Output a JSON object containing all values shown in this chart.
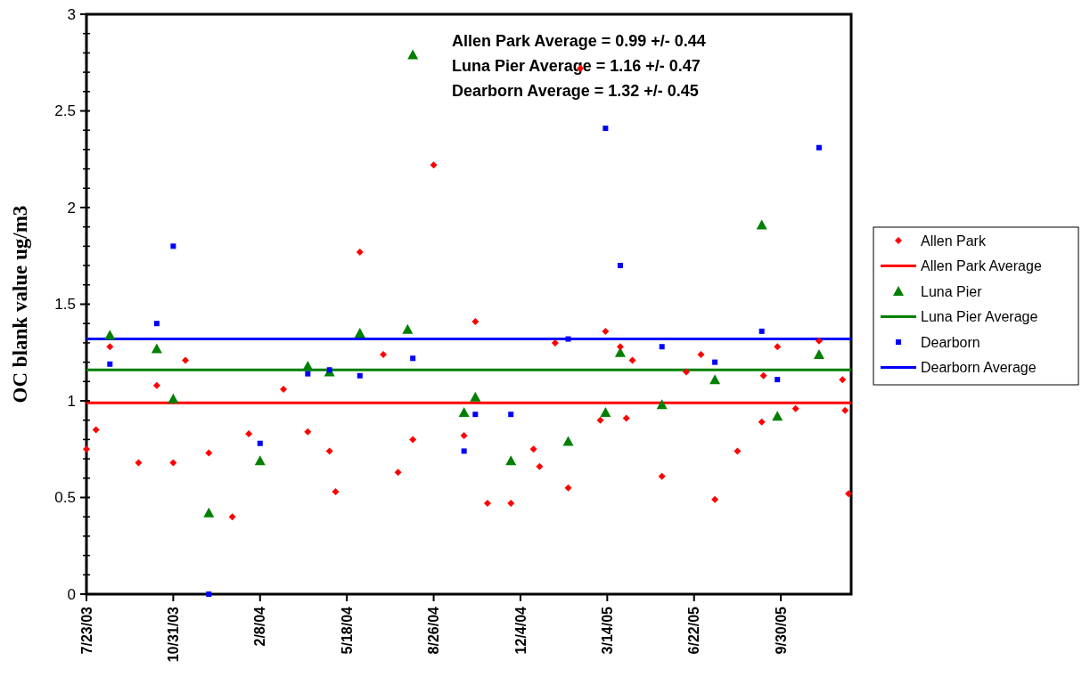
{
  "chart_data": {
    "type": "scatter",
    "ylabel": "OC blank value ug/m3",
    "annotations": [
      "Allen Park Average = 0.99 +/- 0.44",
      "Luna Pier Average = 1.16 +/- 0.47",
      "Dearborn Average = 1.32 +/- 0.45"
    ],
    "xlim": [
      "2003-07-23",
      "2005-12-20"
    ],
    "xticks": [
      {
        "value": "2003-07-23",
        "label": "7/23/03"
      },
      {
        "value": "2003-10-31",
        "label": "10/31/03"
      },
      {
        "value": "2004-02-08",
        "label": "2/8/04"
      },
      {
        "value": "2004-05-18",
        "label": "5/18/04"
      },
      {
        "value": "2004-08-26",
        "label": "8/26/04"
      },
      {
        "value": "2004-12-04",
        "label": "12/4/04"
      },
      {
        "value": "2005-03-14",
        "label": "3/14/05"
      },
      {
        "value": "2005-06-22",
        "label": "6/22/05"
      },
      {
        "value": "2005-09-30",
        "label": "9/30/05"
      }
    ],
    "ylim": [
      0,
      3
    ],
    "yticks": [
      0,
      {
        "value": 0.1,
        "label": null
      },
      {
        "value": 0.2,
        "label": null
      },
      {
        "value": 0.3,
        "label": null
      },
      {
        "value": 0.4,
        "label": null
      },
      0.5,
      {
        "value": 0.6,
        "label": null
      },
      {
        "value": 0.7,
        "label": null
      },
      {
        "value": 0.8,
        "label": null
      },
      {
        "value": 0.9,
        "label": null
      },
      1,
      {
        "value": 1.1,
        "label": null
      },
      {
        "value": 1.2,
        "label": null
      },
      {
        "value": 1.3,
        "label": null
      },
      {
        "value": 1.4,
        "label": null
      },
      1.5,
      {
        "value": 1.6,
        "label": null
      },
      {
        "value": 1.7,
        "label": null
      },
      {
        "value": 1.8,
        "label": null
      },
      {
        "value": 1.9,
        "label": null
      },
      2,
      {
        "value": 2.1,
        "label": null
      },
      {
        "value": 2.2,
        "label": null
      },
      {
        "value": 2.3,
        "label": null
      },
      {
        "value": 2.4,
        "label": null
      },
      2.5,
      {
        "value": 2.6,
        "label": null
      },
      {
        "value": 2.7,
        "label": null
      },
      {
        "value": 2.8,
        "label": null
      },
      {
        "value": 2.9,
        "label": null
      },
      3
    ],
    "grid": false,
    "legend": "right",
    "series": [
      {
        "name": "Allen Park",
        "color": "#ff0000",
        "marker": "diamond",
        "x": [
          "2003-07-23",
          "2003-08-03",
          "2003-08-19",
          "2003-09-21",
          "2003-10-12",
          "2003-10-31",
          "2003-11-14",
          "2003-12-11",
          "2004-01-07",
          "2004-01-26",
          "2004-03-06",
          "2004-04-03",
          "2004-04-28",
          "2004-05-05",
          "2004-06-02",
          "2004-06-29",
          "2004-07-16",
          "2004-08-02",
          "2004-08-26",
          "2004-09-30",
          "2004-10-13",
          "2004-10-27",
          "2004-11-23",
          "2004-12-19",
          "2004-12-26",
          "2005-01-13",
          "2005-01-28",
          "2005-02-11",
          "2005-03-06",
          "2005-03-12",
          "2005-03-29",
          "2005-04-05",
          "2005-04-12",
          "2005-05-16",
          "2005-06-13",
          "2005-06-30",
          "2005-07-16",
          "2005-08-11",
          "2005-09-08",
          "2005-09-10",
          "2005-09-26",
          "2005-10-17",
          "2005-11-13",
          "2005-12-10",
          "2005-12-13",
          "2005-12-17"
        ],
        "values": [
          0.75,
          0.85,
          1.28,
          0.68,
          1.08,
          0.68,
          1.21,
          0.73,
          0.4,
          0.83,
          1.06,
          0.84,
          0.74,
          0.53,
          1.77,
          1.24,
          0.63,
          0.8,
          2.22,
          0.82,
          1.41,
          0.47,
          0.47,
          0.75,
          0.66,
          1.3,
          0.55,
          2.72,
          0.9,
          1.36,
          1.28,
          0.91,
          1.21,
          0.61,
          1.15,
          1.24,
          0.49,
          0.74,
          0.89,
          1.13,
          1.28,
          0.96,
          1.31,
          1.11,
          0.95,
          0.52
        ]
      },
      {
        "name": "Allen Park Average",
        "type": "line",
        "color": "#ff0000",
        "marker": "none",
        "x": [
          "2003-07-23",
          "2005-12-20"
        ],
        "values": [
          0.99,
          0.99
        ]
      },
      {
        "name": "Luna Pier",
        "color": "#008000",
        "marker": "triangle",
        "x": [
          "2003-08-19",
          "2003-10-12",
          "2003-10-31",
          "2003-12-11",
          "2004-02-08",
          "2004-04-03",
          "2004-04-28",
          "2004-06-02",
          "2004-07-27",
          "2004-08-02",
          "2004-09-30",
          "2004-10-13",
          "2004-11-23",
          "2005-01-28",
          "2005-03-12",
          "2005-03-29",
          "2005-05-16",
          "2005-07-16",
          "2005-09-08",
          "2005-09-26",
          "2005-11-13"
        ],
        "values": [
          1.34,
          1.27,
          1.01,
          0.42,
          0.69,
          1.18,
          1.15,
          1.35,
          1.37,
          2.79,
          0.94,
          1.02,
          0.69,
          0.79,
          0.94,
          1.25,
          0.98,
          1.11,
          1.91,
          0.92,
          1.24
        ]
      },
      {
        "name": "Luna Pier Average",
        "type": "line",
        "color": "#008000",
        "marker": "none",
        "x": [
          "2003-07-23",
          "2005-12-20"
        ],
        "values": [
          1.16,
          1.16
        ]
      },
      {
        "name": "Dearborn",
        "color": "#0000ff",
        "marker": "square",
        "x": [
          "2003-08-19",
          "2003-10-12",
          "2003-10-31",
          "2003-12-11",
          "2004-02-08",
          "2004-04-03",
          "2004-04-28",
          "2004-06-02",
          "2004-08-02",
          "2004-09-30",
          "2004-10-13",
          "2004-11-23",
          "2005-01-28",
          "2005-03-12",
          "2005-03-29",
          "2005-05-16",
          "2005-07-16",
          "2005-09-08",
          "2005-09-26",
          "2005-11-13"
        ],
        "values": [
          1.19,
          1.4,
          1.8,
          0,
          0.78,
          1.14,
          1.16,
          1.13,
          1.22,
          0.74,
          0.93,
          0.93,
          1.32,
          2.41,
          1.7,
          1.28,
          1.2,
          1.36,
          1.11,
          2.31
        ]
      },
      {
        "name": "Dearborn Average",
        "type": "line",
        "color": "#0000ff",
        "marker": "none",
        "x": [
          "2003-07-23",
          "2005-12-20"
        ],
        "values": [
          1.32,
          1.32
        ]
      }
    ]
  }
}
